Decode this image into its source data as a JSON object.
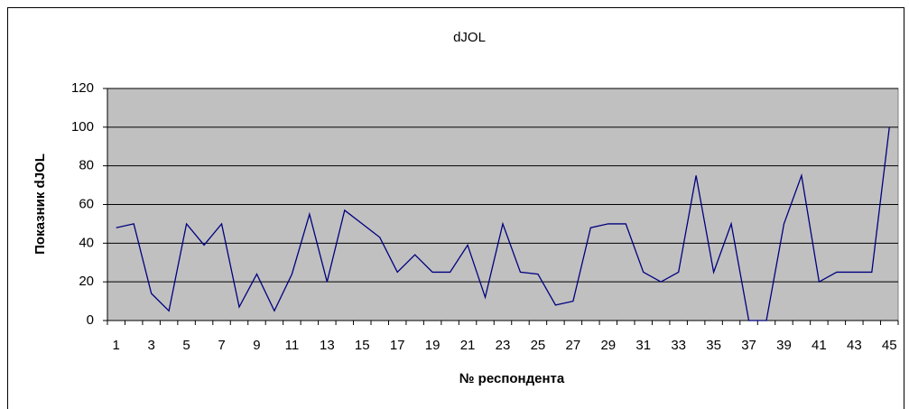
{
  "chart_data": {
    "type": "line",
    "title": "dJOL",
    "x_label": "№ респондента",
    "y_label": "Показник dJOL",
    "categories": [
      1,
      null,
      3,
      null,
      5,
      null,
      7,
      null,
      9,
      null,
      11,
      null,
      13,
      null,
      15,
      null,
      17,
      null,
      19,
      null,
      21,
      null,
      23,
      null,
      25,
      null,
      27,
      null,
      29,
      null,
      31,
      null,
      33,
      null,
      35,
      null,
      37,
      null,
      39,
      null,
      41,
      null,
      43,
      null,
      45
    ],
    "series": [
      {
        "name": "dJOL",
        "color": "#000080",
        "values": [
          48,
          50,
          14,
          5,
          50,
          39,
          50,
          7,
          24,
          5,
          24,
          55,
          20,
          57,
          50,
          43,
          25,
          34,
          25,
          25,
          39,
          12,
          50,
          25,
          24,
          8,
          10,
          48,
          50,
          50,
          25,
          20,
          25,
          75,
          25,
          50,
          0,
          0,
          50,
          75,
          20,
          25,
          25,
          25,
          100
        ]
      }
    ],
    "ylim": [
      0,
      120
    ],
    "yticks": [
      0,
      20,
      40,
      60,
      80,
      100,
      120
    ],
    "grid": true,
    "plot_background": "#c0c0c0"
  }
}
